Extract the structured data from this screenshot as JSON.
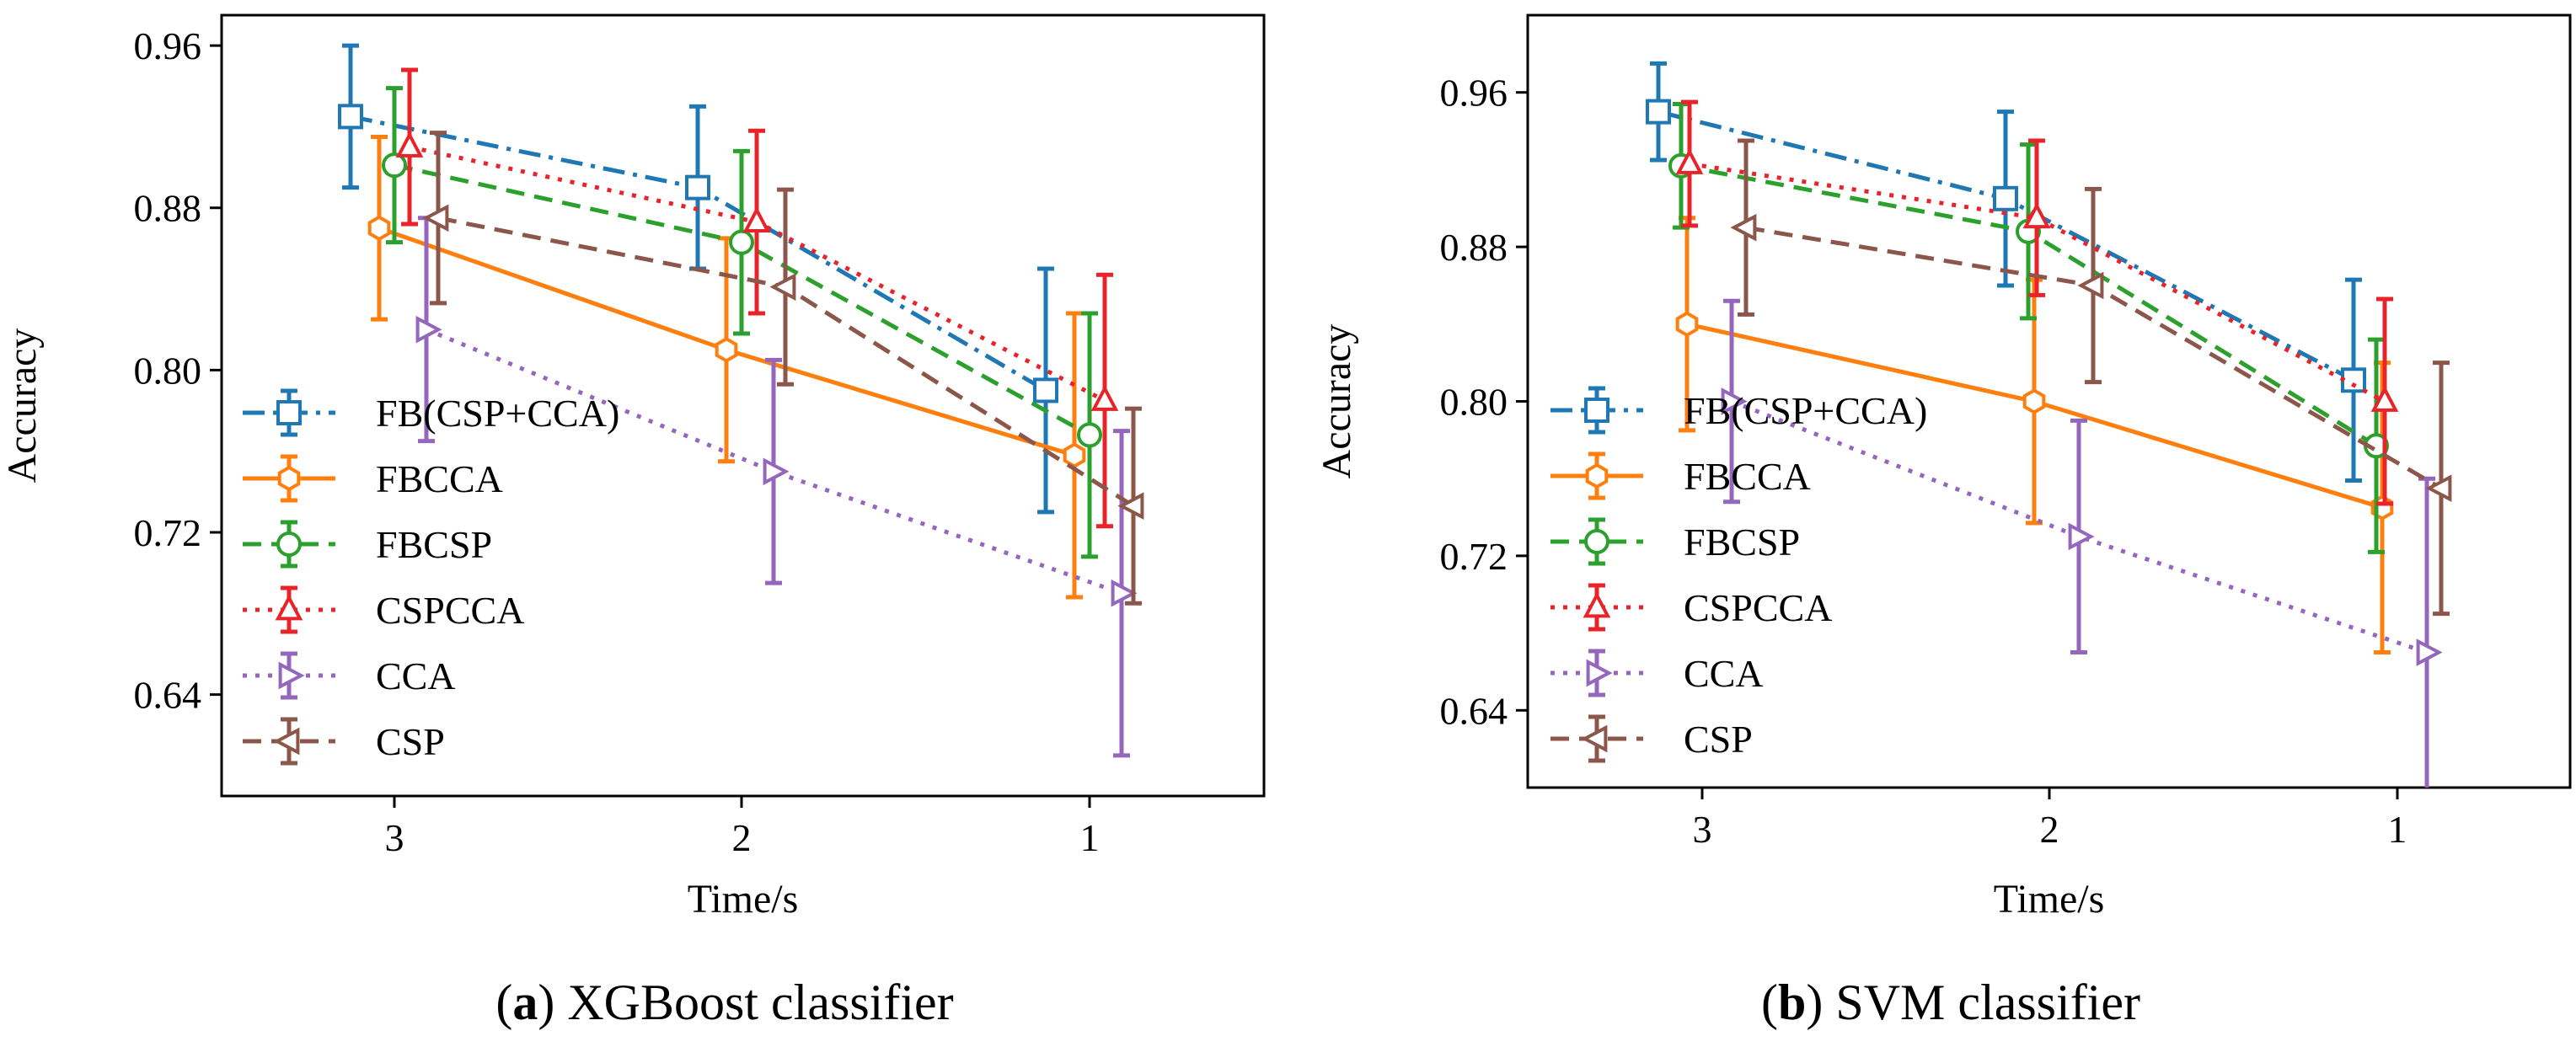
{
  "colors": {
    "FB(CSP+CCA)": "#1f77b4",
    "FBCCA": "#ff7f0e",
    "FBCSP": "#2ca02c",
    "CSPCCA": "#e8232a",
    "CCA": "#9467bd",
    "CSP": "#8c564b"
  },
  "chart_data": [
    {
      "type": "line",
      "title": "",
      "caption": {
        "prefix": "(",
        "letter": "a",
        "suffix": ") XGBoost classifier"
      },
      "xlabel": "Time/s",
      "ylabel": "Accuracy",
      "categories": [
        "3",
        "2",
        "1"
      ],
      "ylim": [
        0.59,
        0.975
      ],
      "yticks": [
        0.64,
        0.72,
        0.8,
        0.88,
        0.96
      ],
      "ytick_labels": [
        "0.64",
        "0.72",
        "0.80",
        "0.88",
        "0.96"
      ],
      "legend_position": "left",
      "series": [
        {
          "name": "FB(CSP+CCA)",
          "marker": "square",
          "linestyle": "dashdot",
          "values": [
            0.925,
            0.89,
            0.79
          ],
          "errors": [
            0.035,
            0.04,
            0.06
          ]
        },
        {
          "name": "FBCCA",
          "marker": "hexagon",
          "linestyle": "solid",
          "values": [
            0.87,
            0.81,
            0.758
          ],
          "errors": [
            0.045,
            0.055,
            0.07
          ]
        },
        {
          "name": "FBCSP",
          "marker": "circle",
          "linestyle": "dashed",
          "values": [
            0.901,
            0.863,
            0.768
          ],
          "errors": [
            0.038,
            0.045,
            0.06
          ]
        },
        {
          "name": "CSPCCA",
          "marker": "triangle-up",
          "linestyle": "dotted",
          "values": [
            0.91,
            0.873,
            0.785
          ],
          "errors": [
            0.038,
            0.045,
            0.062
          ]
        },
        {
          "name": "CCA",
          "marker": "triangle-right",
          "linestyle": "dotted",
          "values": [
            0.82,
            0.75,
            0.69
          ],
          "errors": [
            0.055,
            0.055,
            0.08
          ]
        },
        {
          "name": "CSP",
          "marker": "triangle-left",
          "linestyle": "dashed",
          "values": [
            0.875,
            0.841,
            0.733
          ],
          "errors": [
            0.042,
            0.048,
            0.048
          ]
        }
      ]
    },
    {
      "type": "line",
      "title": "",
      "caption": {
        "prefix": "(",
        "letter": "b",
        "suffix": ") SVM classifier"
      },
      "xlabel": "Time/s",
      "ylabel": "Accuracy",
      "categories": [
        "3",
        "2",
        "1"
      ],
      "ylim": [
        0.6,
        1.0
      ],
      "yticks": [
        0.64,
        0.72,
        0.8,
        0.88,
        0.96
      ],
      "ytick_labels": [
        "0.64",
        "0.72",
        "0.80",
        "0.88",
        "0.96"
      ],
      "legend_position": "left",
      "series": [
        {
          "name": "FB(CSP+CCA)",
          "marker": "square",
          "linestyle": "dashdot",
          "values": [
            0.95,
            0.905,
            0.811
          ],
          "errors": [
            0.025,
            0.045,
            0.052
          ]
        },
        {
          "name": "FBCCA",
          "marker": "hexagon",
          "linestyle": "solid",
          "values": [
            0.84,
            0.8,
            0.745
          ],
          "errors": [
            0.055,
            0.063,
            0.075
          ]
        },
        {
          "name": "FBCSP",
          "marker": "circle",
          "linestyle": "dashed",
          "values": [
            0.922,
            0.888,
            0.777
          ],
          "errors": [
            0.032,
            0.045,
            0.055
          ]
        },
        {
          "name": "CSPCCA",
          "marker": "triangle-up",
          "linestyle": "dotted",
          "values": [
            0.923,
            0.895,
            0.8
          ],
          "errors": [
            0.032,
            0.04,
            0.053
          ]
        },
        {
          "name": "CCA",
          "marker": "triangle-right",
          "linestyle": "dotted",
          "values": [
            0.8,
            0.73,
            0.67
          ],
          "errors": [
            0.052,
            0.06,
            0.09
          ]
        },
        {
          "name": "CSP",
          "marker": "triangle-left",
          "linestyle": "dashed",
          "values": [
            0.89,
            0.86,
            0.755
          ],
          "errors": [
            0.045,
            0.05,
            0.065
          ]
        }
      ]
    }
  ]
}
